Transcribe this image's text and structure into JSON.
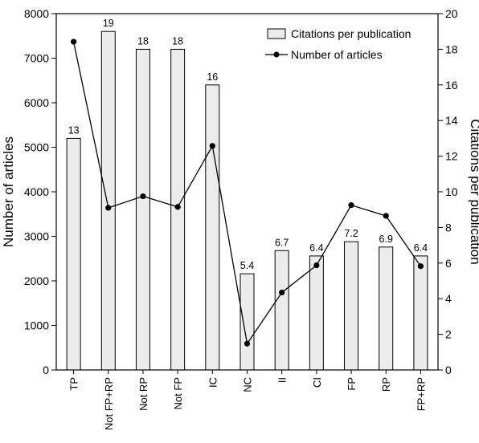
{
  "chart_data": {
    "type": "bar",
    "categories": [
      "TP",
      "Not FP+RP",
      "Not RP",
      "Not FP",
      "IC",
      "NC",
      "II",
      "CI",
      "FP",
      "RP",
      "FP+RP"
    ],
    "series": [
      {
        "name": "Citations per publication",
        "type": "bar",
        "axis": "right",
        "values": [
          13,
          19,
          18,
          18,
          16,
          5.4,
          6.7,
          6.4,
          7.2,
          6.9,
          6.4
        ],
        "data_labels": [
          "13",
          "19",
          "18",
          "18",
          "16",
          "5.4",
          "6.7",
          "6.4",
          "7.2",
          "6.9",
          "6.4"
        ],
        "color": "#ececec"
      },
      {
        "name": "Number of articles",
        "type": "line",
        "axis": "left",
        "values": [
          7370,
          3640,
          3900,
          3660,
          5030,
          590,
          1740,
          2350,
          3700,
          3460,
          2330
        ],
        "color": "#000000"
      }
    ],
    "ylabel": "Number of articles",
    "ylim": [
      0,
      8000
    ],
    "yticks": [
      "0",
      "1000",
      "2000",
      "3000",
      "4000",
      "5000",
      "6000",
      "7000",
      "8000"
    ],
    "y2label": "Citations per publication",
    "y2lim": [
      0,
      20
    ],
    "y2ticks": [
      "0",
      "2",
      "4",
      "6",
      "8",
      "10",
      "12",
      "14",
      "16",
      "18",
      "20"
    ],
    "grid": false,
    "legend_position": "top-right"
  }
}
